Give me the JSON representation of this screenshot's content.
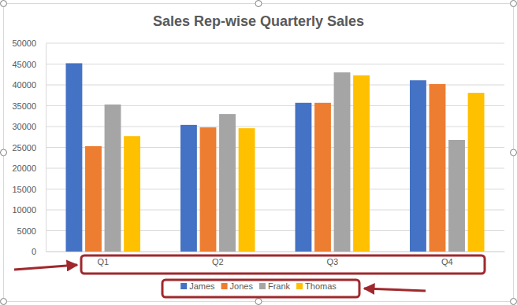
{
  "chart_data": {
    "type": "bar",
    "title": "Sales Rep-wise Quarterly Sales",
    "categories": [
      "Q1",
      "Q2",
      "Q3",
      "Q4"
    ],
    "series": [
      {
        "name": "James",
        "color": "#4472c4",
        "values": [
          45200,
          30400,
          35700,
          41100
        ]
      },
      {
        "name": "Jones",
        "color": "#ed7d31",
        "values": [
          25300,
          29800,
          35700,
          40200
        ]
      },
      {
        "name": "Frank",
        "color": "#a5a5a5",
        "values": [
          35300,
          33000,
          43000,
          26800
        ]
      },
      {
        "name": "Thomas",
        "color": "#ffc000",
        "values": [
          27700,
          29600,
          42300,
          38100
        ]
      }
    ],
    "ylim": [
      0,
      50000
    ],
    "yticks": [
      0,
      5000,
      10000,
      15000,
      20000,
      25000,
      30000,
      35000,
      40000,
      45000,
      50000
    ],
    "grid": true,
    "legend": "bottom"
  }
}
